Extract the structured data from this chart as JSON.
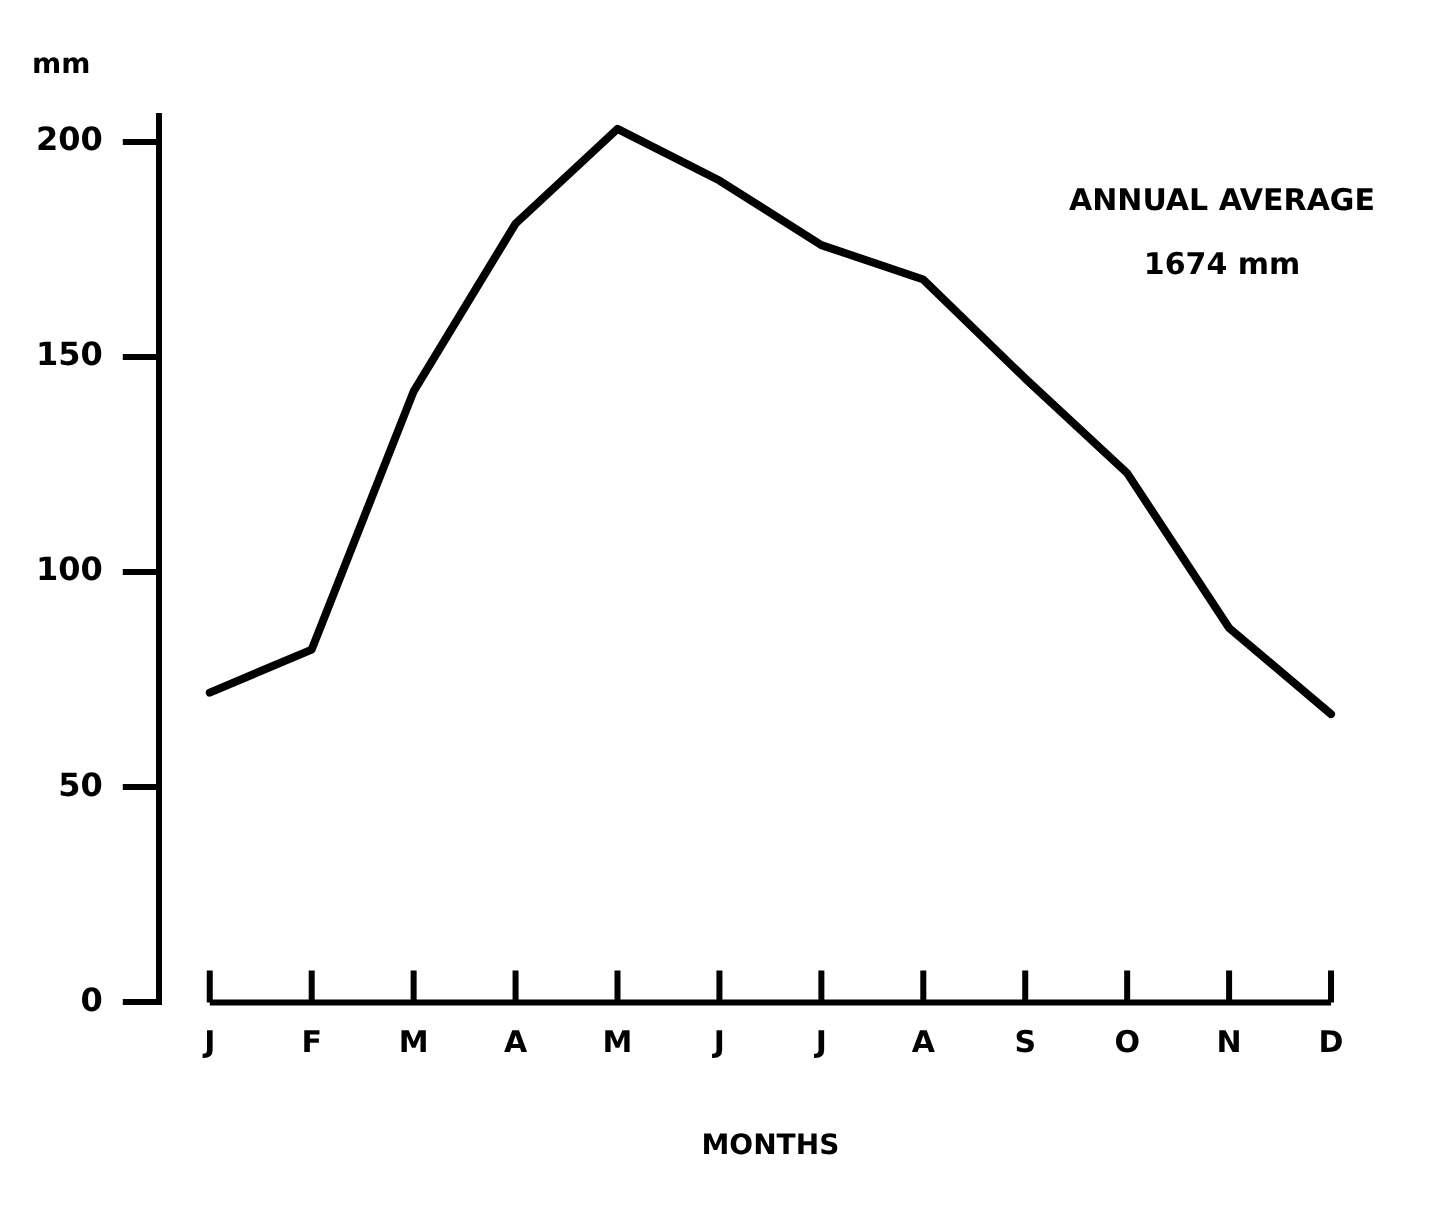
{
  "chart_data": {
    "type": "line",
    "ylabel": "mm",
    "xlabel": "MONTHS",
    "categories": [
      "J",
      "F",
      "M",
      "A",
      "M",
      "J",
      "J",
      "A",
      "S",
      "O",
      "N",
      "D"
    ],
    "series": [
      {
        "color": "#000000",
        "values": [
          72,
          82,
          142,
          181,
          203,
          191,
          176,
          168,
          145,
          123,
          87,
          67
        ]
      }
    ],
    "ylim": [
      0,
      206
    ],
    "yticks": [
      0,
      50,
      100,
      150,
      200
    ],
    "annotations": [
      "ANNUAL AVERAGE",
      "1674 mm"
    ],
    "grid": false,
    "legend": false,
    "marker": "none",
    "line_style": "solid"
  }
}
